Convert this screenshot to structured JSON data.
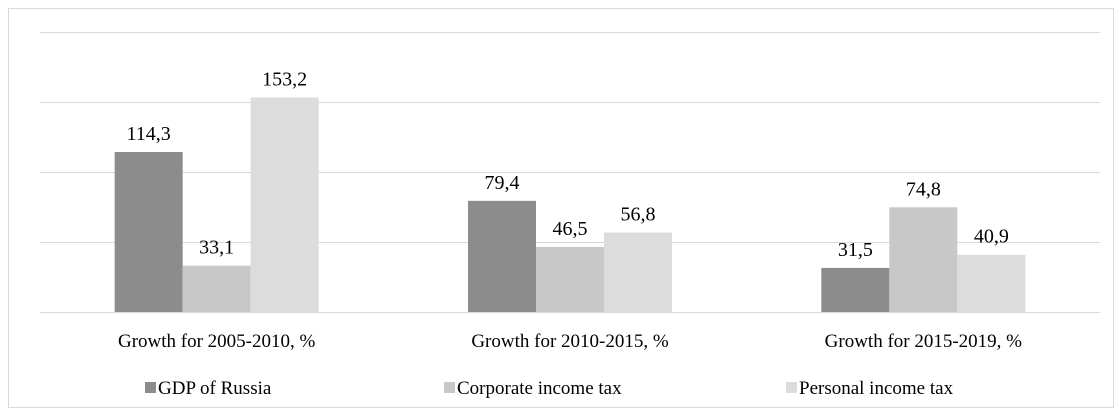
{
  "chart_data": {
    "type": "bar",
    "title": "",
    "xlabel": "",
    "ylabel": "",
    "ylim": [
      0,
      200
    ],
    "gridlines": [
      0,
      50,
      100,
      150,
      200
    ],
    "grid": true,
    "legend_position": "bottom",
    "categories": [
      "Growth for 2005-2010, %",
      "Growth for 2010-2015, %",
      "Growth for 2015-2019, %"
    ],
    "series": [
      {
        "name": "GDP of Russia",
        "color": "#8c8c8c",
        "values": [
          114.3,
          79.4,
          31.5
        ],
        "labels": [
          "114,3",
          "79,4",
          "31,5"
        ]
      },
      {
        "name": "Corporate income tax",
        "color": "#c8c8c8",
        "values": [
          33.1,
          46.5,
          74.8
        ],
        "labels": [
          "33,1",
          "46,5",
          "74,8"
        ]
      },
      {
        "name": "Personal income tax",
        "color": "#dcdcdc",
        "values": [
          153.2,
          56.8,
          40.9
        ],
        "labels": [
          "153,2",
          "56,8",
          "40,9"
        ]
      }
    ]
  }
}
